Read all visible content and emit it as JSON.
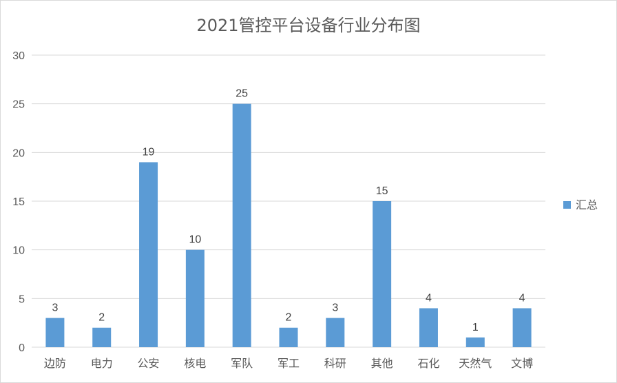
{
  "chart_data": {
    "type": "bar",
    "title": "2021管控平台设备行业分布图",
    "categories": [
      "边防",
      "电力",
      "公安",
      "核电",
      "军队",
      "军工",
      "科研",
      "其他",
      "石化",
      "天然气",
      "文博"
    ],
    "series": [
      {
        "name": "汇总",
        "values": [
          3,
          2,
          19,
          10,
          25,
          2,
          3,
          15,
          4,
          1,
          4
        ],
        "color": "#5b9bd5"
      }
    ],
    "ylim": [
      0,
      30
    ],
    "yticks": [
      0,
      5,
      10,
      15,
      20,
      25,
      30
    ],
    "grid": true,
    "legend_position": "right",
    "data_labels": true
  }
}
